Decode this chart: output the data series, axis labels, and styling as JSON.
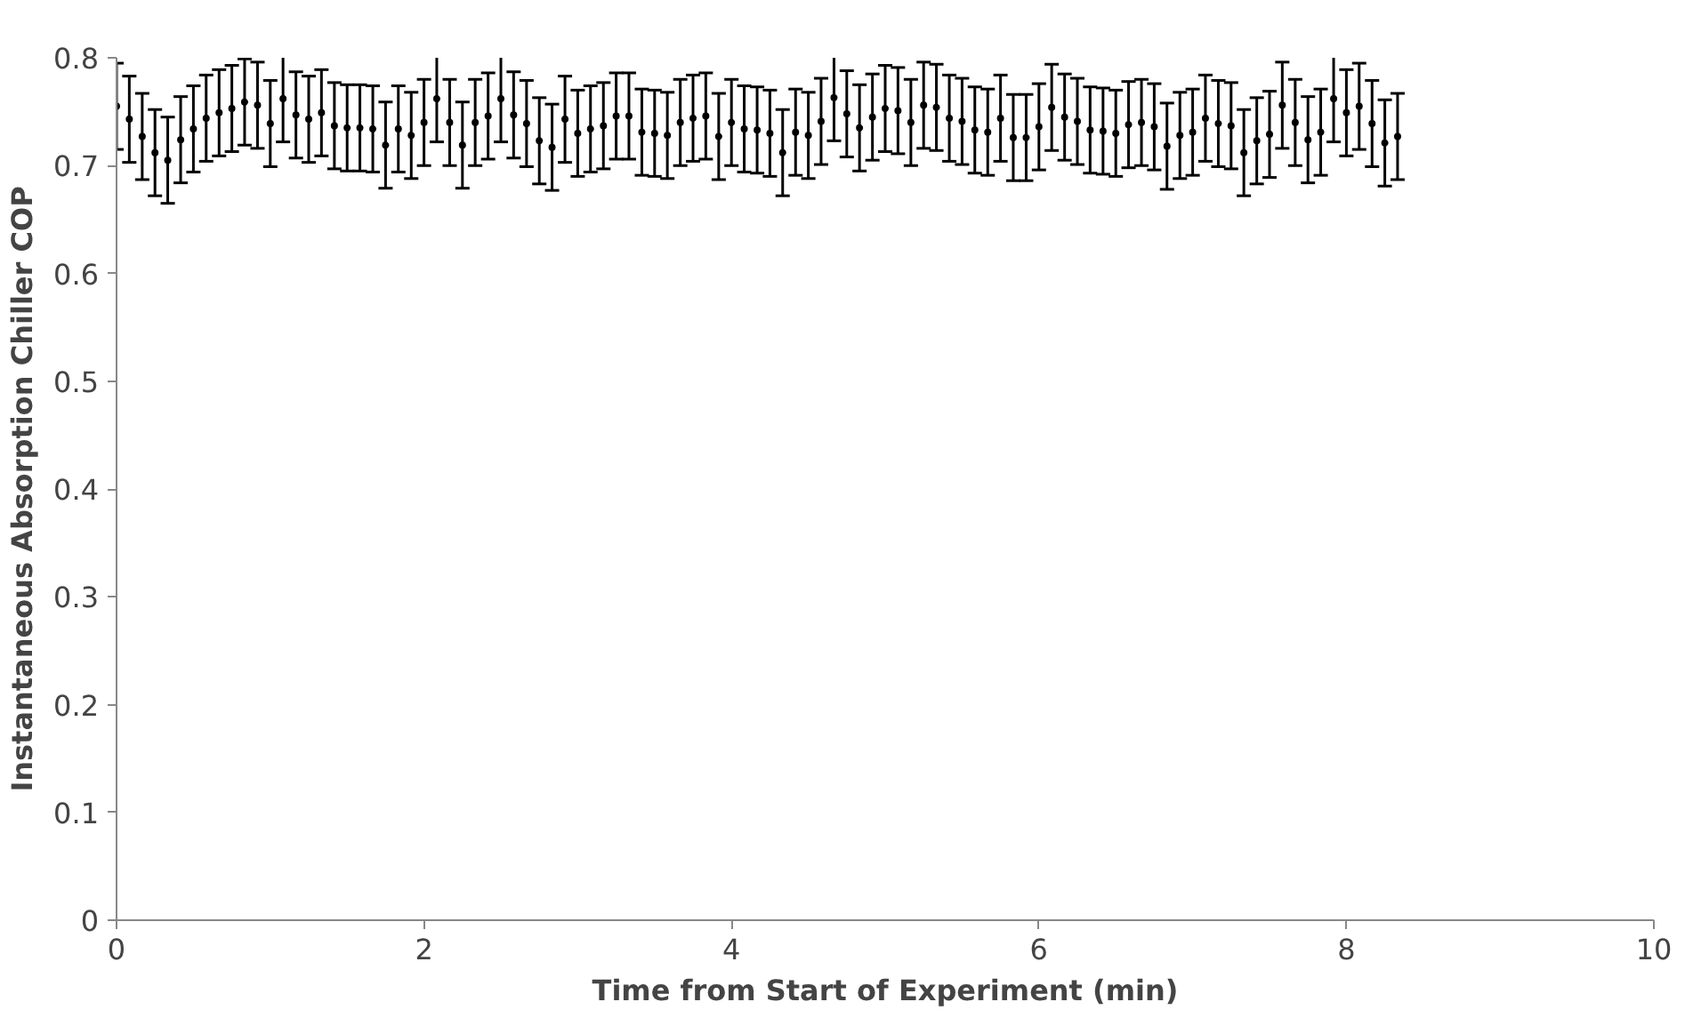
{
  "chart_data": {
    "type": "scatter",
    "grid": false,
    "xlabel": "Time from Start of Experiment (min)",
    "ylabel": "Instantaneous Absorption Chiller COP",
    "xlim": [
      0,
      10
    ],
    "xticks": [
      0,
      2,
      4,
      6,
      8,
      10
    ],
    "ylim": [
      0,
      0.8
    ],
    "yticks": [
      {
        "value": 0,
        "label": "0"
      },
      0.1,
      0.2,
      0.3,
      0.4,
      0.5,
      0.6,
      0.7,
      0.8
    ],
    "series": [
      {
        "color": "#000000",
        "x": [
          0,
          0.083,
          0.167,
          0.25,
          0.333,
          0.417,
          0.5,
          0.583,
          0.667,
          0.75,
          0.833,
          0.917,
          1,
          1.083,
          1.167,
          1.25,
          1.333,
          1.417,
          1.5,
          1.583,
          1.667,
          1.75,
          1.833,
          1.917,
          2,
          2.083,
          2.167,
          2.25,
          2.333,
          2.417,
          2.5,
          2.583,
          2.667,
          2.75,
          2.833,
          2.917,
          3,
          3.083,
          3.167,
          3.25,
          3.333,
          3.417,
          3.5,
          3.583,
          3.667,
          3.75,
          3.833,
          3.917,
          4,
          4.083,
          4.167,
          4.25,
          4.333,
          4.417,
          4.5,
          4.583,
          4.667,
          4.75,
          4.833,
          4.917,
          5,
          5.083,
          5.167,
          5.25,
          5.333,
          5.417,
          5.5,
          5.583,
          5.667,
          5.75,
          5.833,
          5.917,
          6,
          6.083,
          6.167,
          6.25,
          6.333,
          6.417,
          6.5,
          6.583,
          6.667,
          6.75,
          6.833,
          6.917,
          7,
          7.083,
          7.167,
          7.25,
          7.333,
          7.417,
          7.5,
          7.583,
          7.667,
          7.75,
          7.833,
          7.917,
          8,
          8.083,
          8.167,
          8.25,
          8.333
        ],
        "values": [
          0.755,
          0.743,
          0.727,
          0.712,
          0.705,
          0.724,
          0.734,
          0.744,
          0.749,
          0.753,
          0.759,
          0.756,
          0.739,
          0.762,
          0.747,
          0.743,
          0.749,
          0.737,
          0.735,
          0.735,
          0.734,
          0.719,
          0.734,
          0.728,
          0.74,
          0.762,
          0.74,
          0.719,
          0.74,
          0.746,
          0.762,
          0.747,
          0.739,
          0.723,
          0.717,
          0.743,
          0.73,
          0.734,
          0.737,
          0.746,
          0.746,
          0.731,
          0.73,
          0.728,
          0.74,
          0.744,
          0.746,
          0.727,
          0.74,
          0.734,
          0.733,
          0.73,
          0.712,
          0.731,
          0.728,
          0.741,
          0.763,
          0.748,
          0.735,
          0.745,
          0.753,
          0.751,
          0.74,
          0.756,
          0.754,
          0.744,
          0.741,
          0.733,
          0.731,
          0.744,
          0.726,
          0.726,
          0.736,
          0.754,
          0.745,
          0.741,
          0.733,
          0.732,
          0.73,
          0.738,
          0.74,
          0.736,
          0.718,
          0.728,
          0.731,
          0.744,
          0.739,
          0.737,
          0.712,
          0.723,
          0.729,
          0.756,
          0.74,
          0.724,
          0.731,
          0.762,
          0.749,
          0.755,
          0.739,
          0.721,
          0.727
        ],
        "errors": [
          0.04,
          0.04,
          0.04,
          0.04,
          0.04,
          0.04,
          0.04,
          0.04,
          0.04,
          0.04,
          0.04,
          0.04,
          0.04,
          0.04,
          0.04,
          0.04,
          0.04,
          0.04,
          0.04,
          0.04,
          0.04,
          0.04,
          0.04,
          0.04,
          0.04,
          0.04,
          0.04,
          0.04,
          0.04,
          0.04,
          0.04,
          0.04,
          0.04,
          0.04,
          0.04,
          0.04,
          0.04,
          0.04,
          0.04,
          0.04,
          0.04,
          0.04,
          0.04,
          0.04,
          0.04,
          0.04,
          0.04,
          0.04,
          0.04,
          0.04,
          0.04,
          0.04,
          0.04,
          0.04,
          0.04,
          0.04,
          0.04,
          0.04,
          0.04,
          0.04,
          0.04,
          0.04,
          0.04,
          0.04,
          0.04,
          0.04,
          0.04,
          0.04,
          0.04,
          0.04,
          0.04,
          0.04,
          0.04,
          0.04,
          0.04,
          0.04,
          0.04,
          0.04,
          0.04,
          0.04,
          0.04,
          0.04,
          0.04,
          0.04,
          0.04,
          0.04,
          0.04,
          0.04,
          0.04,
          0.04,
          0.04,
          0.04,
          0.04,
          0.04,
          0.04,
          0.04,
          0.04,
          0.04,
          0.04,
          0.04,
          0.04
        ]
      }
    ]
  }
}
